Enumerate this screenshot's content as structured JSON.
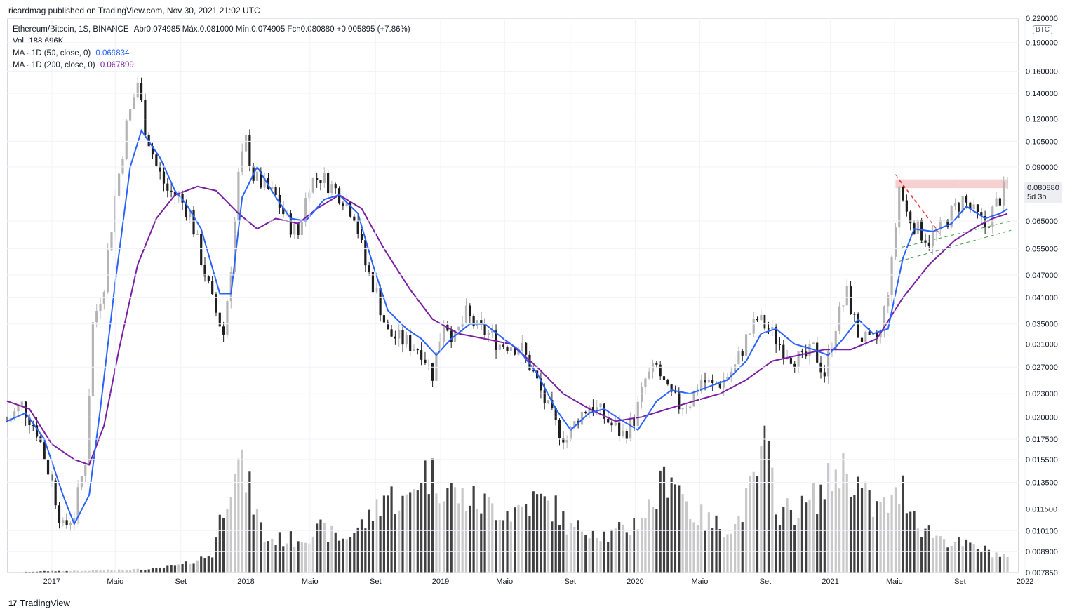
{
  "header": {
    "text": "ricardmag published on TradingView.com, Nov 30, 2021 21:02 UTC"
  },
  "legend": {
    "symbol": "Ethereum/Bitcoin, 1S, BINANCE",
    "ohlc": "Abr0.074985  Máx.0.081000  Mín.0.074905  Fch0.080880  +0.005895 (+7.86%)",
    "vol_label": "Vol",
    "vol_value": "188.696K",
    "ma50_label": "MA · 1D (50, close, 0)",
    "ma50_value": "0.069834",
    "ma200_label": "MA · 1D (200, close, 0)",
    "ma200_value": "0.067899"
  },
  "currency_button": "BTC",
  "last_price": {
    "value": "0.080880",
    "countdown": "5d 3h"
  },
  "footer": {
    "brand": "TradingView",
    "logo": "17"
  },
  "colors": {
    "up": "#b4b4b4",
    "down": "#1e1e1e",
    "ma50": "#2962ff",
    "ma200": "#7b1fa2",
    "resistance": "#f5c6c6",
    "red_trend": "#e53935",
    "green_trend": "#43a047"
  },
  "chart_data": {
    "type": "candlestick",
    "y_scale": "log",
    "ylim": [
      0.00785,
      0.22
    ],
    "y_ticks": [
      "0.220000",
      "0.190000",
      "0.160000",
      "0.140000",
      "0.120000",
      "0.105000",
      "0.090000",
      "0.080880",
      "0.065000",
      "0.055000",
      "0.047000",
      "0.041000",
      "0.035000",
      "0.031000",
      "0.027000",
      "0.023000",
      "0.020000",
      "0.017500",
      "0.015500",
      "0.013500",
      "0.011500",
      "0.010100",
      "0.008900",
      "0.007850"
    ],
    "x_range": [
      "2016-10-10",
      "2021-12-20"
    ],
    "x_ticks": [
      {
        "date": "2017-01-02",
        "label": "2017"
      },
      {
        "date": "2017-05-01",
        "label": "Maio"
      },
      {
        "date": "2017-09-01",
        "label": "Set"
      },
      {
        "date": "2018-01-01",
        "label": "2018"
      },
      {
        "date": "2018-05-01",
        "label": "Maio"
      },
      {
        "date": "2018-09-01",
        "label": "Set"
      },
      {
        "date": "2019-01-01",
        "label": "2019"
      },
      {
        "date": "2019-05-01",
        "label": "Maio"
      },
      {
        "date": "2019-09-01",
        "label": "Set"
      },
      {
        "date": "2020-01-01",
        "label": "2020"
      },
      {
        "date": "2020-05-01",
        "label": "Maio"
      },
      {
        "date": "2020-09-01",
        "label": "Set"
      },
      {
        "date": "2021-01-01",
        "label": "2021"
      },
      {
        "date": "2021-05-01",
        "label": "Maio"
      },
      {
        "date": "2021-09-01",
        "label": "Set"
      },
      {
        "date": "2022-01-01",
        "label": "2022"
      }
    ],
    "close_path": [
      [
        "2016-10-10",
        0.0195
      ],
      [
        "2016-11-07",
        0.0215
      ],
      [
        "2016-12-05",
        0.0185
      ],
      [
        "2017-01-02",
        0.0135
      ],
      [
        "2017-01-23",
        0.0102
      ],
      [
        "2017-02-13",
        0.0112
      ],
      [
        "2017-03-06",
        0.0155
      ],
      [
        "2017-03-20",
        0.035
      ],
      [
        "2017-04-10",
        0.045
      ],
      [
        "2017-05-01",
        0.075
      ],
      [
        "2017-05-22",
        0.115
      ],
      [
        "2017-06-12",
        0.15
      ],
      [
        "2017-06-26",
        0.115
      ],
      [
        "2017-07-17",
        0.09
      ],
      [
        "2017-08-07",
        0.078
      ],
      [
        "2017-08-28",
        0.075
      ],
      [
        "2017-09-18",
        0.068
      ],
      [
        "2017-10-09",
        0.052
      ],
      [
        "2017-10-30",
        0.04
      ],
      [
        "2017-11-20",
        0.033
      ],
      [
        "2017-12-04",
        0.05
      ],
      [
        "2017-12-18",
        0.085
      ],
      [
        "2018-01-01",
        0.105
      ],
      [
        "2018-01-15",
        0.085
      ],
      [
        "2018-02-05",
        0.08
      ],
      [
        "2018-02-26",
        0.075
      ],
      [
        "2018-03-19",
        0.065
      ],
      [
        "2018-04-09",
        0.06
      ],
      [
        "2018-04-30",
        0.082
      ],
      [
        "2018-05-21",
        0.085
      ],
      [
        "2018-06-11",
        0.08
      ],
      [
        "2018-07-02",
        0.075
      ],
      [
        "2018-07-23",
        0.068
      ],
      [
        "2018-08-13",
        0.05
      ],
      [
        "2018-09-03",
        0.042
      ],
      [
        "2018-09-24",
        0.033
      ],
      [
        "2018-10-15",
        0.032
      ],
      [
        "2018-11-05",
        0.031
      ],
      [
        "2018-11-26",
        0.03
      ],
      [
        "2018-12-17",
        0.026
      ],
      [
        "2019-01-07",
        0.036
      ],
      [
        "2019-01-28",
        0.032
      ],
      [
        "2019-02-18",
        0.037
      ],
      [
        "2019-03-11",
        0.034
      ],
      [
        "2019-04-01",
        0.033
      ],
      [
        "2019-04-22",
        0.031
      ],
      [
        "2019-05-13",
        0.031
      ],
      [
        "2019-06-03",
        0.03
      ],
      [
        "2019-06-24",
        0.026
      ],
      [
        "2019-07-15",
        0.022
      ],
      [
        "2019-08-05",
        0.019
      ],
      [
        "2019-08-26",
        0.0175
      ],
      [
        "2019-09-16",
        0.02
      ],
      [
        "2019-10-07",
        0.0215
      ],
      [
        "2019-10-28",
        0.0205
      ],
      [
        "2019-11-18",
        0.019
      ],
      [
        "2019-12-09",
        0.018
      ],
      [
        "2020-01-01",
        0.02
      ],
      [
        "2020-01-20",
        0.025
      ],
      [
        "2020-02-10",
        0.027
      ],
      [
        "2020-03-02",
        0.023
      ],
      [
        "2020-03-23",
        0.0215
      ],
      [
        "2020-04-13",
        0.022
      ],
      [
        "2020-05-04",
        0.025
      ],
      [
        "2020-05-25",
        0.024
      ],
      [
        "2020-06-15",
        0.025
      ],
      [
        "2020-07-06",
        0.027
      ],
      [
        "2020-07-27",
        0.032
      ],
      [
        "2020-08-17",
        0.036
      ],
      [
        "2020-09-07",
        0.034
      ],
      [
        "2020-09-28",
        0.031
      ],
      [
        "2020-10-19",
        0.029
      ],
      [
        "2020-11-09",
        0.028
      ],
      [
        "2020-11-30",
        0.03
      ],
      [
        "2020-12-21",
        0.026
      ],
      [
        "2021-01-11",
        0.035
      ],
      [
        "2021-02-01",
        0.042
      ],
      [
        "2021-02-22",
        0.033
      ],
      [
        "2021-03-15",
        0.031
      ],
      [
        "2021-04-05",
        0.033
      ],
      [
        "2021-04-26",
        0.05
      ],
      [
        "2021-05-10",
        0.08
      ],
      [
        "2021-05-24",
        0.068
      ],
      [
        "2021-06-14",
        0.062
      ],
      [
        "2021-07-05",
        0.058
      ],
      [
        "2021-07-26",
        0.062
      ],
      [
        "2021-08-16",
        0.068
      ],
      [
        "2021-09-06",
        0.074
      ],
      [
        "2021-09-27",
        0.068
      ],
      [
        "2021-10-18",
        0.063
      ],
      [
        "2021-11-08",
        0.072
      ],
      [
        "2021-11-29",
        0.0809
      ]
    ],
    "ma50": [
      [
        "2016-10-10",
        0.0195
      ],
      [
        "2016-11-14",
        0.0205
      ],
      [
        "2016-12-19",
        0.0175
      ],
      [
        "2017-01-23",
        0.0125
      ],
      [
        "2017-02-13",
        0.0105
      ],
      [
        "2017-03-13",
        0.0125
      ],
      [
        "2017-04-03",
        0.021
      ],
      [
        "2017-05-01",
        0.045
      ],
      [
        "2017-05-29",
        0.09
      ],
      [
        "2017-06-19",
        0.112
      ],
      [
        "2017-07-24",
        0.095
      ],
      [
        "2017-08-21",
        0.078
      ],
      [
        "2017-09-11",
        0.072
      ],
      [
        "2017-10-09",
        0.062
      ],
      [
        "2017-11-13",
        0.042
      ],
      [
        "2017-12-04",
        0.042
      ],
      [
        "2017-12-25",
        0.075
      ],
      [
        "2018-01-22",
        0.09
      ],
      [
        "2018-02-26",
        0.075
      ],
      [
        "2018-03-26",
        0.066
      ],
      [
        "2018-04-23",
        0.065
      ],
      [
        "2018-05-28",
        0.074
      ],
      [
        "2018-06-25",
        0.076
      ],
      [
        "2018-07-30",
        0.068
      ],
      [
        "2018-08-27",
        0.05
      ],
      [
        "2018-09-24",
        0.038
      ],
      [
        "2018-10-29",
        0.034
      ],
      [
        "2018-11-26",
        0.032
      ],
      [
        "2018-12-24",
        0.029
      ],
      [
        "2019-01-21",
        0.032
      ],
      [
        "2019-02-25",
        0.035
      ],
      [
        "2019-03-25",
        0.035
      ],
      [
        "2019-04-29",
        0.032
      ],
      [
        "2019-05-27",
        0.03
      ],
      [
        "2019-07-01",
        0.026
      ],
      [
        "2019-08-05",
        0.021
      ],
      [
        "2019-09-02",
        0.0185
      ],
      [
        "2019-10-07",
        0.0205
      ],
      [
        "2019-11-04",
        0.021
      ],
      [
        "2019-12-09",
        0.0195
      ],
      [
        "2020-01-06",
        0.0185
      ],
      [
        "2020-02-10",
        0.022
      ],
      [
        "2020-03-09",
        0.0235
      ],
      [
        "2020-04-13",
        0.023
      ],
      [
        "2020-05-18",
        0.024
      ],
      [
        "2020-06-22",
        0.025
      ],
      [
        "2020-07-27",
        0.028
      ],
      [
        "2020-08-24",
        0.033
      ],
      [
        "2020-09-21",
        0.034
      ],
      [
        "2020-10-26",
        0.031
      ],
      [
        "2020-11-30",
        0.03
      ],
      [
        "2020-12-28",
        0.029
      ],
      [
        "2021-01-25",
        0.032
      ],
      [
        "2021-02-22",
        0.036
      ],
      [
        "2021-03-22",
        0.033
      ],
      [
        "2021-04-19",
        0.034
      ],
      [
        "2021-05-17",
        0.052
      ],
      [
        "2021-06-07",
        0.062
      ],
      [
        "2021-07-12",
        0.061
      ],
      [
        "2021-08-16",
        0.064
      ],
      [
        "2021-09-13",
        0.071
      ],
      [
        "2021-10-18",
        0.066
      ],
      [
        "2021-11-15",
        0.068
      ],
      [
        "2021-11-29",
        0.069834
      ]
    ],
    "ma200": [
      [
        "2016-10-10",
        0.022
      ],
      [
        "2016-11-21",
        0.021
      ],
      [
        "2017-01-02",
        0.017
      ],
      [
        "2017-02-13",
        0.0155
      ],
      [
        "2017-03-13",
        0.015
      ],
      [
        "2017-04-10",
        0.019
      ],
      [
        "2017-05-08",
        0.03
      ],
      [
        "2017-06-12",
        0.05
      ],
      [
        "2017-07-17",
        0.066
      ],
      [
        "2017-08-21",
        0.076
      ],
      [
        "2017-10-02",
        0.08
      ],
      [
        "2017-11-06",
        0.078
      ],
      [
        "2017-12-18",
        0.068
      ],
      [
        "2018-01-22",
        0.062
      ],
      [
        "2018-02-26",
        0.066
      ],
      [
        "2018-04-09",
        0.064
      ],
      [
        "2018-05-14",
        0.07
      ],
      [
        "2018-06-25",
        0.076
      ],
      [
        "2018-08-06",
        0.07
      ],
      [
        "2018-09-17",
        0.055
      ],
      [
        "2018-11-05",
        0.043
      ],
      [
        "2018-12-17",
        0.036
      ],
      [
        "2019-02-04",
        0.033
      ],
      [
        "2019-03-25",
        0.032
      ],
      [
        "2019-05-13",
        0.031
      ],
      [
        "2019-07-01",
        0.027
      ],
      [
        "2019-08-19",
        0.023
      ],
      [
        "2019-10-07",
        0.021
      ],
      [
        "2019-11-25",
        0.0195
      ],
      [
        "2020-01-13",
        0.02
      ],
      [
        "2020-03-02",
        0.021
      ],
      [
        "2020-04-20",
        0.022
      ],
      [
        "2020-06-08",
        0.023
      ],
      [
        "2020-07-27",
        0.025
      ],
      [
        "2020-09-14",
        0.028
      ],
      [
        "2020-11-02",
        0.029
      ],
      [
        "2020-12-21",
        0.03
      ],
      [
        "2021-02-08",
        0.03
      ],
      [
        "2021-03-29",
        0.032
      ],
      [
        "2021-05-17",
        0.041
      ],
      [
        "2021-07-05",
        0.05
      ],
      [
        "2021-08-23",
        0.058
      ],
      [
        "2021-10-04",
        0.063
      ],
      [
        "2021-11-01",
        0.066
      ],
      [
        "2021-11-29",
        0.067899
      ]
    ],
    "volume": {
      "range": [
        0,
        100
      ],
      "points": [
        [
          "2016-10-10",
          0
        ],
        [
          "2017-01-02",
          1
        ],
        [
          "2017-03-06",
          1
        ],
        [
          "2017-05-01",
          2
        ],
        [
          "2017-07-03",
          2
        ],
        [
          "2017-09-04",
          5
        ],
        [
          "2017-10-30",
          12
        ],
        [
          "2017-11-20",
          45
        ],
        [
          "2017-12-11",
          75
        ],
        [
          "2018-01-01",
          62
        ],
        [
          "2018-02-05",
          22
        ],
        [
          "2018-04-02",
          22
        ],
        [
          "2018-05-21",
          28
        ],
        [
          "2018-07-02",
          22
        ],
        [
          "2018-08-20",
          35
        ],
        [
          "2018-09-17",
          52
        ],
        [
          "2018-10-29",
          45
        ],
        [
          "2018-11-26",
          68
        ],
        [
          "2018-12-24",
          62
        ],
        [
          "2019-02-04",
          50
        ],
        [
          "2019-03-25",
          45
        ],
        [
          "2019-05-13",
          40
        ],
        [
          "2019-07-01",
          48
        ],
        [
          "2019-08-05",
          42
        ],
        [
          "2019-09-02",
          28
        ],
        [
          "2019-10-07",
          30
        ],
        [
          "2019-11-11",
          24
        ],
        [
          "2019-12-23",
          30
        ],
        [
          "2020-02-03",
          45
        ],
        [
          "2020-03-09",
          70
        ],
        [
          "2020-04-13",
          40
        ],
        [
          "2020-05-25",
          32
        ],
        [
          "2020-07-06",
          30
        ],
        [
          "2020-08-10",
          58
        ],
        [
          "2020-08-31",
          82
        ],
        [
          "2020-09-28",
          40
        ],
        [
          "2020-11-09",
          42
        ],
        [
          "2020-12-21",
          55
        ],
        [
          "2021-01-18",
          70
        ],
        [
          "2021-02-15",
          62
        ],
        [
          "2021-03-22",
          42
        ],
        [
          "2021-04-26",
          45
        ],
        [
          "2021-05-17",
          55
        ],
        [
          "2021-06-21",
          30
        ],
        [
          "2021-08-02",
          22
        ],
        [
          "2021-09-13",
          18
        ],
        [
          "2021-10-25",
          14
        ],
        [
          "2021-11-29",
          10
        ]
      ]
    },
    "annotations": [
      {
        "type": "resistance_band",
        "y_low": 0.0792,
        "y_high": 0.0835,
        "x_start": "2021-05-03",
        "x_end": "2021-11-29"
      },
      {
        "type": "trendline",
        "color": "red",
        "points": [
          [
            "2021-05-03",
            0.086
          ],
          [
            "2021-07-19",
            0.062
          ]
        ]
      },
      {
        "type": "trendline",
        "color": "red",
        "points": [
          [
            "2021-05-10",
            0.083
          ],
          [
            "2021-07-26",
            0.06
          ]
        ]
      },
      {
        "type": "trendline",
        "color": "green",
        "points": [
          [
            "2021-05-03",
            0.055
          ],
          [
            "2021-12-06",
            0.065
          ]
        ]
      },
      {
        "type": "trendline",
        "color": "green",
        "points": [
          [
            "2021-05-10",
            0.051
          ],
          [
            "2021-12-06",
            0.0615
          ]
        ]
      }
    ]
  }
}
